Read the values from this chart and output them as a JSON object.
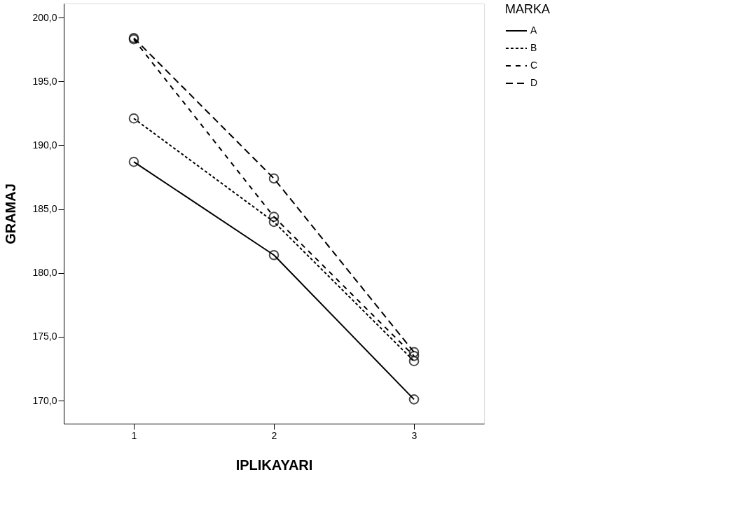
{
  "chart_data": {
    "type": "line",
    "xlabel": "IPLIKAYARI",
    "ylabel": "GRAMAJ",
    "legend_title": "MARKA",
    "categories": [
      "1",
      "2",
      "3"
    ],
    "series": [
      {
        "name": "A",
        "color": "#000000",
        "line_style": "solid",
        "values": [
          188.7,
          181.4,
          170.1
        ]
      },
      {
        "name": "B",
        "color": "#000000",
        "line_style": "dotted",
        "values": [
          192.1,
          184.0,
          173.1
        ]
      },
      {
        "name": "C",
        "color": "#000000",
        "line_style": "dashed",
        "values": [
          198.3,
          184.4,
          173.5
        ]
      },
      {
        "name": "D",
        "color": "#000000",
        "line_style": "dashed",
        "values": [
          198.4,
          187.4,
          173.8
        ]
      }
    ],
    "ylim": [
      168.2,
      201.1
    ],
    "yticks": [
      {
        "value": 170,
        "label": "170,0"
      },
      {
        "value": 175,
        "label": "175,0"
      },
      {
        "value": 180,
        "label": "180,0"
      },
      {
        "value": 185,
        "label": "185,0"
      },
      {
        "value": 190,
        "label": "190,0"
      },
      {
        "value": 195,
        "label": "195,0"
      },
      {
        "value": 200,
        "label": "200,0"
      }
    ],
    "marker": "circle",
    "grid": false,
    "legend": "top right"
  }
}
